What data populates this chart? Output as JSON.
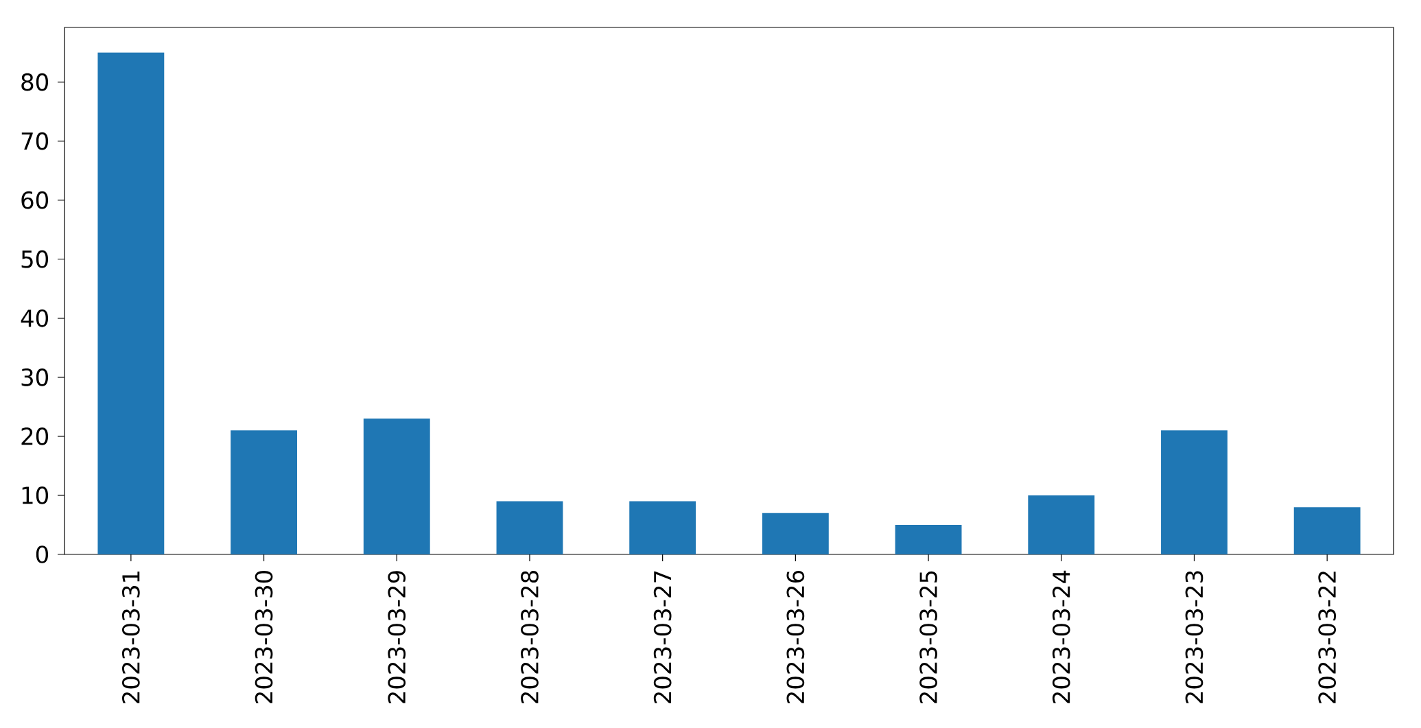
{
  "chart_data": {
    "type": "bar",
    "categories": [
      "2023-03-31",
      "2023-03-30",
      "2023-03-29",
      "2023-03-28",
      "2023-03-27",
      "2023-03-26",
      "2023-03-25",
      "2023-03-24",
      "2023-03-23",
      "2023-03-22"
    ],
    "values": [
      85,
      21,
      23,
      9,
      9,
      7,
      5,
      10,
      21,
      8
    ],
    "color": "#1f77b4",
    "ylim": [
      0,
      89.25
    ],
    "yticks": [
      0,
      10,
      20,
      30,
      40,
      50,
      60,
      70,
      80
    ]
  }
}
